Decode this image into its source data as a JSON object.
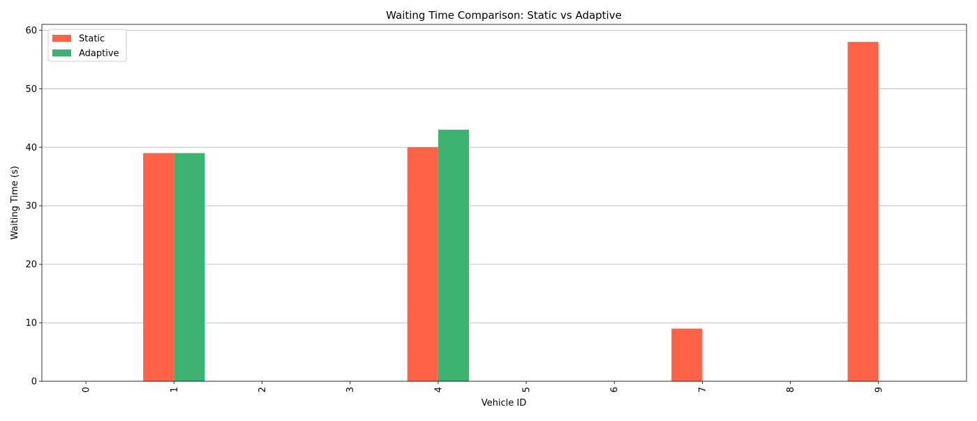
{
  "chart_data": {
    "type": "bar",
    "title": "Waiting Time Comparison: Static vs Adaptive",
    "xlabel": "Vehicle ID",
    "ylabel": "Waiting Time (s)",
    "categories": [
      "0",
      "1",
      "2",
      "3",
      "4",
      "5",
      "6",
      "7",
      "8",
      "9"
    ],
    "series": [
      {
        "name": "Static",
        "color": "#ff6347",
        "values": [
          0,
          39,
          0,
          0,
          40,
          0,
          0,
          9,
          0,
          58
        ]
      },
      {
        "name": "Adaptive",
        "color": "#3cb371",
        "values": [
          0,
          39,
          0,
          0,
          43,
          0,
          0,
          0,
          0,
          0
        ]
      }
    ],
    "ylim": [
      0,
      61
    ],
    "yticks": [
      0,
      10,
      20,
      30,
      40,
      50,
      60
    ],
    "grid": "y-axis",
    "legend_position": "top-left",
    "xtick_rotation": "vertical"
  }
}
